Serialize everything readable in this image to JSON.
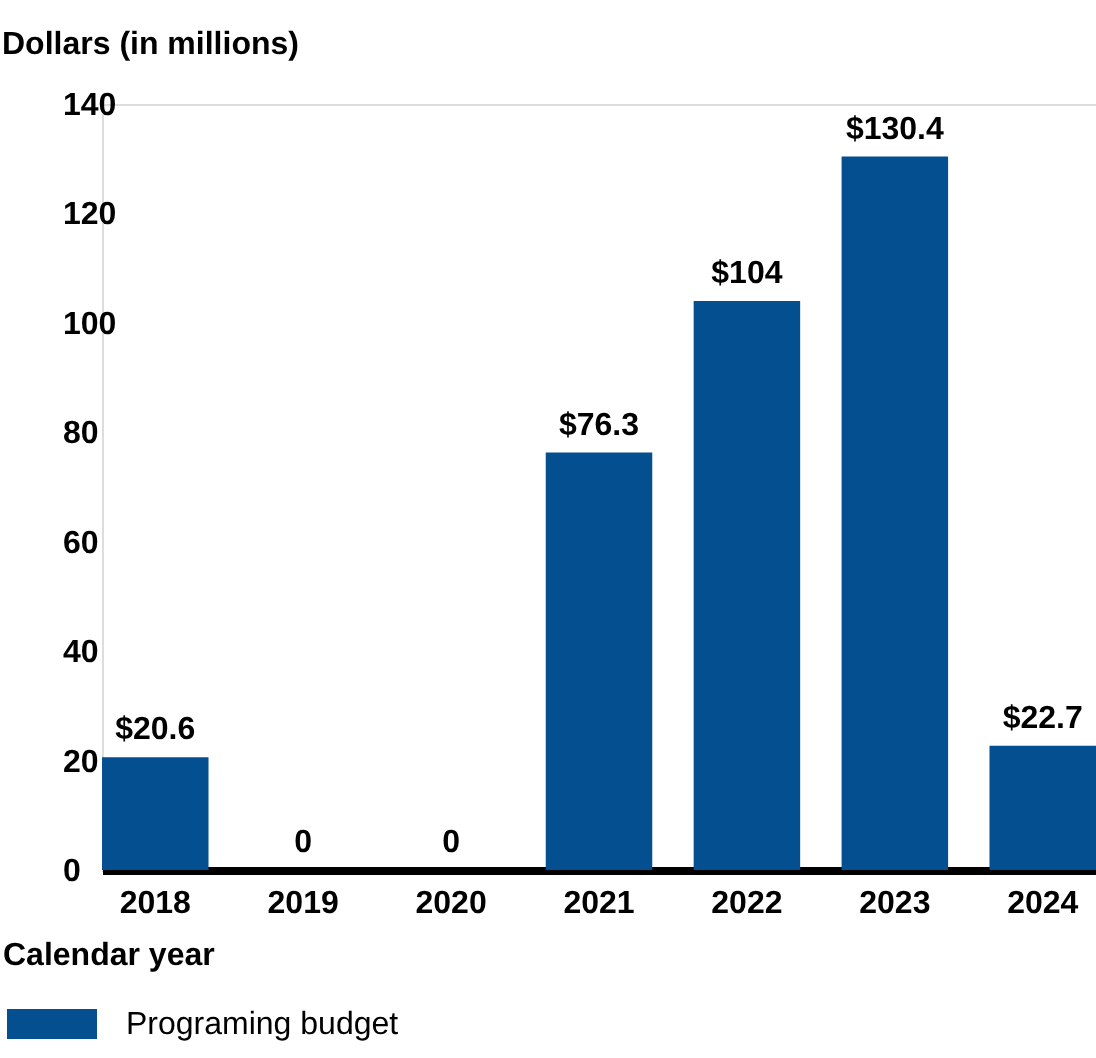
{
  "chart_data": {
    "type": "bar",
    "title": "Dollars (in millions)",
    "xlabel": "Calendar year",
    "categories": [
      "2018",
      "2019",
      "2020",
      "2021",
      "2022",
      "2023",
      "2024"
    ],
    "series": [
      {
        "name": "Programing budget",
        "color": "#034f8f",
        "values": [
          20.6,
          0,
          0,
          76.3,
          104,
          130.4,
          22.7
        ],
        "value_labels": [
          "$20.6",
          "0",
          "0",
          "$76.3",
          "$104",
          "$130.4",
          "$22.7"
        ]
      }
    ],
    "ylim": [
      0,
      140
    ],
    "yticks": [
      0,
      20,
      40,
      60,
      80,
      100,
      120,
      140
    ],
    "grid": false,
    "legend": "bottom"
  }
}
